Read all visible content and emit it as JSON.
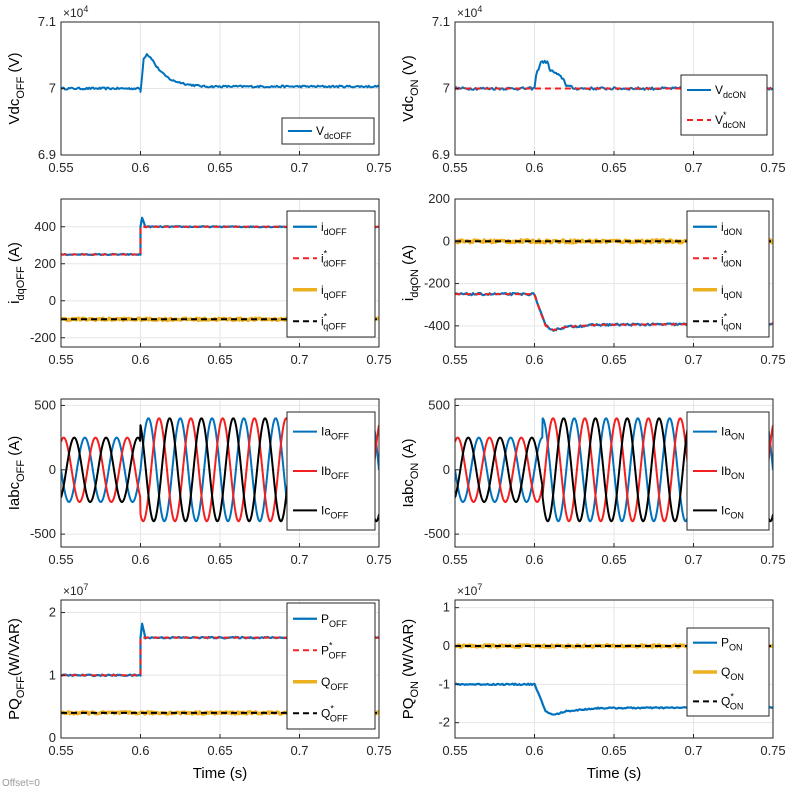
{
  "colors": {
    "blue": "#0072BD",
    "red": "#F22020",
    "yellow": "#EDB120",
    "black": "#000000",
    "grid": "#E6E6E6"
  },
  "offset_label": "Offset=0",
  "chart_data": [
    {
      "id": "vdc_off",
      "type": "line",
      "ylabel": {
        "main": "Vdc",
        "sub": "OFF",
        "unit": " (V)"
      },
      "exponent": {
        "base": "×10",
        "power": "4"
      },
      "xlim": [
        0.55,
        0.75
      ],
      "ylim": [
        6.9,
        7.1
      ],
      "xticks": [
        0.55,
        0.6,
        0.65,
        0.7,
        0.75
      ],
      "xticklabels": [
        "0.55",
        "0.6",
        "0.65",
        "0.7",
        "0.75"
      ],
      "yticks": [
        6.9,
        7.0,
        7.1
      ],
      "yticklabels": [
        "6.9",
        "7",
        "7.1"
      ],
      "series": [
        {
          "name": "V",
          "sub": "dcOFF",
          "color": "blue",
          "style": "solid",
          "width": 2,
          "x": [
            0.55,
            0.6,
            0.6,
            0.602,
            0.604,
            0.607,
            0.61,
            0.615,
            0.62,
            0.63,
            0.64,
            0.75
          ],
          "y": [
            7.0,
            7.0,
            6.995,
            7.045,
            7.052,
            7.045,
            7.033,
            7.02,
            7.012,
            7.006,
            7.003,
            7.003
          ],
          "noise": 0.0015
        }
      ],
      "legend": {
        "position": "bottom-right"
      }
    },
    {
      "id": "vdc_on",
      "type": "line",
      "ylabel": {
        "main": "Vdc",
        "sub": "ON",
        "unit": " (V)"
      },
      "exponent": {
        "base": "×10",
        "power": "4"
      },
      "xlim": [
        0.55,
        0.75
      ],
      "ylim": [
        6.9,
        7.1
      ],
      "xticks": [
        0.55,
        0.6,
        0.65,
        0.7,
        0.75
      ],
      "xticklabels": [
        "0.55",
        "0.6",
        "0.65",
        "0.7",
        "0.75"
      ],
      "yticks": [
        6.9,
        7.0,
        7.1
      ],
      "yticklabels": [
        "6.9",
        "7",
        "7.1"
      ],
      "series": [
        {
          "name": "V",
          "sub": "dcON",
          "color": "blue",
          "style": "solid",
          "width": 2,
          "x": [
            0.55,
            0.6,
            0.601,
            0.604,
            0.608,
            0.61,
            0.612,
            0.615,
            0.618,
            0.62,
            0.625,
            0.63,
            0.75
          ],
          "y": [
            7.0,
            7.0,
            7.02,
            7.04,
            7.04,
            7.027,
            7.025,
            7.02,
            7.015,
            7.005,
            7.0,
            7.0,
            7.0
          ],
          "noise": 0.002
        },
        {
          "name": "V",
          "sub": "dcON",
          "star": true,
          "color": "red",
          "style": "dashed",
          "width": 2,
          "x": [
            0.55,
            0.75
          ],
          "y": [
            7.0,
            7.0
          ],
          "noise": 0
        }
      ],
      "legend": {
        "position": "right"
      }
    },
    {
      "id": "idq_off",
      "type": "line",
      "ylabel": {
        "main": "i",
        "sub": "dqOFF",
        "unit": " (A)"
      },
      "xlim": [
        0.55,
        0.75
      ],
      "ylim": [
        -250,
        550
      ],
      "xticks": [
        0.55,
        0.6,
        0.65,
        0.7,
        0.75
      ],
      "xticklabels": [
        "0.55",
        "0.6",
        "0.65",
        "0.7",
        "0.75"
      ],
      "yticks": [
        -200,
        0,
        200,
        400
      ],
      "yticklabels": [
        "-200",
        "0",
        "200",
        "400"
      ],
      "series": [
        {
          "name": "i",
          "sub": "dOFF",
          "color": "blue",
          "style": "solid",
          "width": 2.2,
          "x": [
            0.55,
            0.6,
            0.6,
            0.601,
            0.603,
            0.75
          ],
          "y": [
            250,
            250,
            400,
            450,
            400,
            400
          ],
          "noise": 3
        },
        {
          "name": "i",
          "sub": "dOFF",
          "star": true,
          "color": "red",
          "style": "dashed",
          "width": 2,
          "x": [
            0.55,
            0.6,
            0.6,
            0.75
          ],
          "y": [
            250,
            250,
            400,
            400
          ],
          "noise": 0
        },
        {
          "name": "i",
          "sub": "qOFF",
          "color": "yellow",
          "style": "solid",
          "width": 3.5,
          "x": [
            0.55,
            0.75
          ],
          "y": [
            -100,
            -100
          ],
          "noise": 6
        },
        {
          "name": "i",
          "sub": "qOFF",
          "star": true,
          "color": "black",
          "style": "dashed",
          "width": 2,
          "x": [
            0.55,
            0.75
          ],
          "y": [
            -100,
            -100
          ],
          "noise": 0
        }
      ],
      "legend": {
        "position": "right"
      }
    },
    {
      "id": "idq_on",
      "type": "line",
      "ylabel": {
        "main": "i",
        "sub": "dqON",
        "unit": " (A)"
      },
      "xlim": [
        0.55,
        0.75
      ],
      "ylim": [
        -500,
        200
      ],
      "xticks": [
        0.55,
        0.6,
        0.65,
        0.7,
        0.75
      ],
      "xticklabels": [
        "0.55",
        "0.6",
        "0.65",
        "0.7",
        "0.75"
      ],
      "yticks": [
        -400,
        -200,
        0,
        200
      ],
      "yticklabels": [
        "-400",
        "-200",
        "0",
        "200"
      ],
      "series": [
        {
          "name": "i",
          "sub": "dON",
          "color": "blue",
          "style": "solid",
          "width": 2.2,
          "x": [
            0.55,
            0.6,
            0.603,
            0.607,
            0.612,
            0.62,
            0.64,
            0.75
          ],
          "y": [
            -250,
            -250,
            -320,
            -400,
            -420,
            -405,
            -395,
            -390
          ],
          "noise": 5
        },
        {
          "name": "i",
          "sub": "dON",
          "star": true,
          "color": "red",
          "style": "dashed",
          "width": 2,
          "x": [
            0.55,
            0.6,
            0.603,
            0.607,
            0.612,
            0.62,
            0.64,
            0.75
          ],
          "y": [
            -250,
            -250,
            -320,
            -400,
            -420,
            -405,
            -395,
            -390
          ],
          "noise": 0
        },
        {
          "name": "i",
          "sub": "qON",
          "color": "yellow",
          "style": "solid",
          "width": 3.5,
          "x": [
            0.55,
            0.75
          ],
          "y": [
            0,
            0
          ],
          "noise": 7
        },
        {
          "name": "i",
          "sub": "qON",
          "star": true,
          "color": "black",
          "style": "dashed",
          "width": 2,
          "x": [
            0.55,
            0.75
          ],
          "y": [
            0,
            0
          ],
          "noise": 0
        }
      ],
      "legend": {
        "position": "right"
      }
    },
    {
      "id": "iabc_off",
      "type": "line",
      "ylabel": {
        "main": "Iabc",
        "sub": "OFF",
        "unit": " (A)"
      },
      "xlim": [
        0.55,
        0.75
      ],
      "ylim": [
        -600,
        550
      ],
      "xticks": [
        0.55,
        0.6,
        0.65,
        0.7,
        0.75
      ],
      "xticklabels": [
        "0.55",
        "0.6",
        "0.65",
        "0.7",
        "0.75"
      ],
      "yticks": [
        -500,
        0,
        500
      ],
      "yticklabels": [
        "-500",
        "0",
        "500"
      ],
      "waveform": {
        "type": "three_phase",
        "freq_hz": 50,
        "amp_before": 250,
        "amp_after": 400,
        "step_x": 0.6
      },
      "series": [
        {
          "name": "Ia",
          "sub": "OFF",
          "color": "blue",
          "style": "solid",
          "width": 2,
          "phase_deg": 0
        },
        {
          "name": "Ib",
          "sub": "OFF",
          "color": "red",
          "style": "solid",
          "width": 2,
          "phase_deg": -120
        },
        {
          "name": "Ic",
          "sub": "OFF",
          "color": "black",
          "style": "solid",
          "width": 2,
          "phase_deg": 120
        }
      ],
      "legend": {
        "position": "right"
      }
    },
    {
      "id": "iabc_on",
      "type": "line",
      "ylabel": {
        "main": "Iabc",
        "sub": "ON",
        "unit": " (A)"
      },
      "xlim": [
        0.55,
        0.75
      ],
      "ylim": [
        -600,
        550
      ],
      "xticks": [
        0.55,
        0.6,
        0.65,
        0.7,
        0.75
      ],
      "xticklabels": [
        "0.55",
        "0.6",
        "0.65",
        "0.7",
        "0.75"
      ],
      "yticks": [
        -500,
        0,
        500
      ],
      "yticklabels": [
        "-500",
        "0",
        "500"
      ],
      "waveform": {
        "type": "three_phase",
        "freq_hz": 50,
        "amp_before": 250,
        "amp_after": 400,
        "step_x": 0.605
      },
      "series": [
        {
          "name": "Ia",
          "sub": "ON",
          "color": "blue",
          "style": "solid",
          "width": 2,
          "phase_deg": 0
        },
        {
          "name": "Ib",
          "sub": "ON",
          "color": "red",
          "style": "solid",
          "width": 2,
          "phase_deg": -120
        },
        {
          "name": "Ic",
          "sub": "ON",
          "color": "black",
          "style": "solid",
          "width": 2,
          "phase_deg": 120
        }
      ],
      "legend": {
        "position": "right"
      }
    },
    {
      "id": "pq_off",
      "type": "line",
      "ylabel": {
        "main": "PQ",
        "sub": "OFF",
        "unit": "(W/VAR)"
      },
      "exponent": {
        "base": "×10",
        "power": "7"
      },
      "xlim": [
        0.55,
        0.75
      ],
      "ylim": [
        0,
        2.2
      ],
      "xlabel": "Time (s)",
      "xticks": [
        0.55,
        0.6,
        0.65,
        0.7,
        0.75
      ],
      "xticklabels": [
        "0.55",
        "0.6",
        "0.65",
        "0.7",
        "0.75"
      ],
      "yticks": [
        0,
        1,
        2
      ],
      "yticklabels": [
        "0",
        "1",
        "2"
      ],
      "series": [
        {
          "name": "P",
          "sub": "OFF",
          "color": "blue",
          "style": "solid",
          "width": 2.2,
          "x": [
            0.55,
            0.6,
            0.6,
            0.601,
            0.603,
            0.75
          ],
          "y": [
            1.0,
            1.0,
            1.6,
            1.82,
            1.6,
            1.6
          ],
          "noise": 0.012
        },
        {
          "name": "P",
          "sub": "OFF",
          "star": true,
          "color": "red",
          "style": "dashed",
          "width": 2,
          "x": [
            0.55,
            0.6,
            0.6,
            0.75
          ],
          "y": [
            1.0,
            1.0,
            1.6,
            1.6
          ],
          "noise": 0
        },
        {
          "name": "Q",
          "sub": "OFF",
          "color": "yellow",
          "style": "solid",
          "width": 3.5,
          "x": [
            0.55,
            0.75
          ],
          "y": [
            0.4,
            0.4
          ],
          "noise": 0.018
        },
        {
          "name": "Q",
          "sub": "OFF",
          "star": true,
          "color": "black",
          "style": "dashed",
          "width": 2,
          "x": [
            0.55,
            0.75
          ],
          "y": [
            0.4,
            0.4
          ],
          "noise": 0
        }
      ],
      "legend": {
        "position": "right"
      }
    },
    {
      "id": "pq_on",
      "type": "line",
      "ylabel": {
        "main": "PQ",
        "sub": "ON",
        "unit": " (W/VAR)"
      },
      "exponent": {
        "base": "×10",
        "power": "7"
      },
      "xlim": [
        0.55,
        0.75
      ],
      "ylim": [
        -2.4,
        1.2
      ],
      "xlabel": "Time (s)",
      "xticks": [
        0.55,
        0.6,
        0.65,
        0.7,
        0.75
      ],
      "xticklabels": [
        "0.55",
        "0.6",
        "0.65",
        "0.7",
        "0.75"
      ],
      "yticks": [
        -2,
        -1,
        0,
        1
      ],
      "yticklabels": [
        "-2",
        "-1",
        "0",
        "1"
      ],
      "series": [
        {
          "name": "P",
          "sub": "ON",
          "color": "blue",
          "style": "solid",
          "width": 2.2,
          "x": [
            0.55,
            0.6,
            0.603,
            0.607,
            0.612,
            0.62,
            0.64,
            0.75
          ],
          "y": [
            -1.0,
            -1.0,
            -1.3,
            -1.7,
            -1.8,
            -1.7,
            -1.62,
            -1.6
          ],
          "noise": 0.018
        },
        {
          "name": "Q",
          "sub": "ON",
          "color": "yellow",
          "style": "solid",
          "width": 3.5,
          "x": [
            0.55,
            0.75
          ],
          "y": [
            0,
            0
          ],
          "noise": 0.03
        },
        {
          "name": "Q",
          "sub": "ON",
          "star": true,
          "color": "black",
          "style": "dashed",
          "width": 2,
          "x": [
            0.55,
            0.75
          ],
          "y": [
            0,
            0
          ],
          "noise": 0
        }
      ],
      "legend": {
        "position": "right"
      }
    }
  ]
}
